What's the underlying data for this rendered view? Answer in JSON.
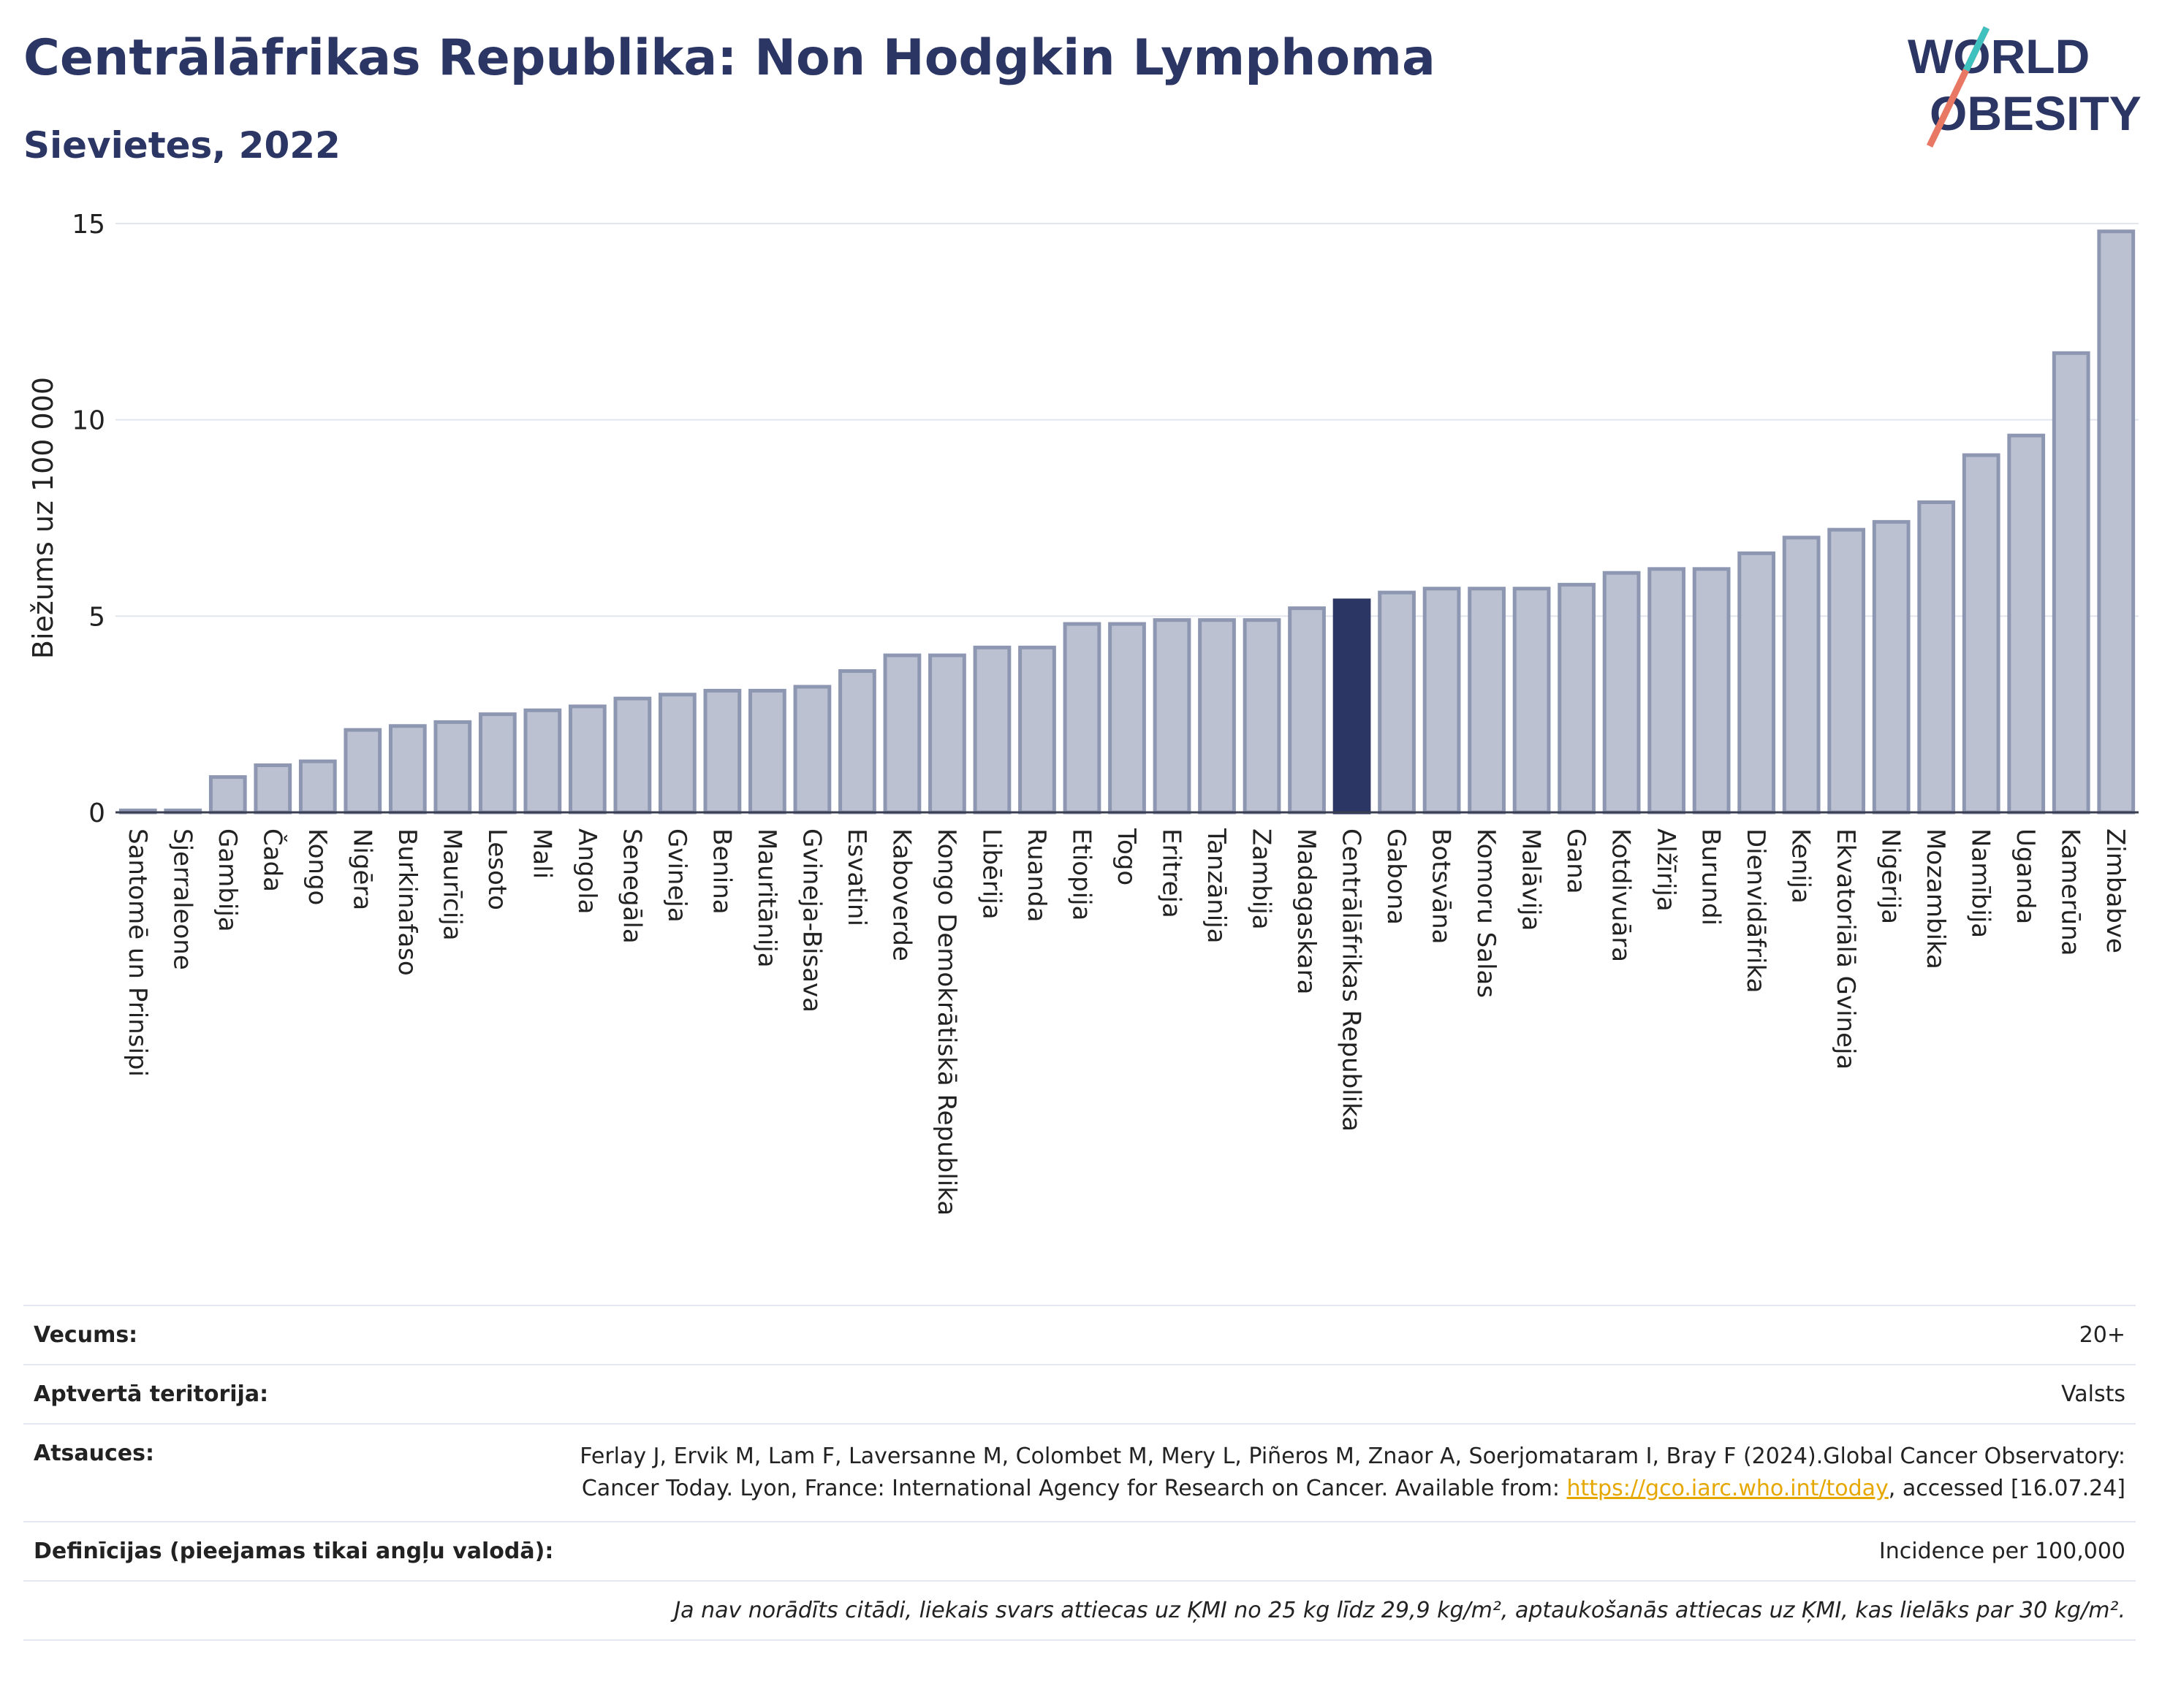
{
  "title": "Centrālāfrikas Republika: Non Hodgkin Lymphoma",
  "subtitle": "Sievietes, 2022",
  "logo": {
    "line1": "WORLD",
    "line2": "OBESITY"
  },
  "chart_data": {
    "type": "bar",
    "ylabel": "Biežums uz 100 000",
    "ylim": [
      0,
      15
    ],
    "yticks": [
      0,
      5,
      10,
      15
    ],
    "grid": true,
    "highlight": "Centrālāfrikas Republika",
    "colors": {
      "bar": "#bcc1d1",
      "bar_edge": "#8e97b2",
      "highlight": "#2b3664"
    },
    "categories": [
      "Santomē un Prinsipi",
      "Sjerraleone",
      "Gambija",
      "Čada",
      "Kongo",
      "Nigēra",
      "Burkinafaso",
      "Maurīcija",
      "Lesoto",
      "Mali",
      "Angola",
      "Senegāla",
      "Gvineja",
      "Benina",
      "Mauritānija",
      "Gvineja-Bisava",
      "Esvatini",
      "Kaboverde",
      "Kongo Demokrātiskā Republika",
      "Libērija",
      "Ruanda",
      "Etiopija",
      "Togo",
      "Eritreja",
      "Tanzānija",
      "Zambija",
      "Madagaskara",
      "Centrālāfrikas Republika",
      "Gabona",
      "Botsvāna",
      "Komoru Salas",
      "Malāvija",
      "Gana",
      "Kotdivuāra",
      "Alžīrija",
      "Burundi",
      "Dienvidāfrika",
      "Kenija",
      "Ekvatoriālā Gvineja",
      "Nigērija",
      "Mozambika",
      "Namībija",
      "Uganda",
      "Kamerūna",
      "Zimbabve"
    ],
    "values": [
      0.05,
      0.05,
      0.9,
      1.2,
      1.3,
      2.1,
      2.2,
      2.3,
      2.5,
      2.6,
      2.7,
      2.9,
      3.0,
      3.1,
      3.1,
      3.2,
      3.6,
      4.0,
      4.0,
      4.2,
      4.2,
      4.8,
      4.8,
      4.9,
      4.9,
      4.9,
      5.2,
      5.4,
      5.6,
      5.7,
      5.7,
      5.7,
      5.8,
      6.1,
      6.2,
      6.2,
      6.6,
      7.0,
      7.2,
      7.4,
      7.9,
      9.1,
      9.6,
      11.7,
      14.8
    ]
  },
  "info": {
    "age_label": "Vecums:",
    "age_value": "20+",
    "territory_label": "Aptvertā teritorija:",
    "territory_value": "Valsts",
    "refs_label": "Atsauces:",
    "refs_text_1": "Ferlay J, Ervik M, Lam F, Laversanne M, Colombet M, Mery L, Piñeros M, Znaor A, Soerjomataram I, Bray F (2024).Global Cancer Observatory: Cancer Today. Lyon, France: International Agency for Research on Cancer. Available from: ",
    "refs_link": "https://gco.iarc.who.int/today",
    "refs_text_2": ", accessed [16.07.24]",
    "definitions_label": "Definīcijas (pieejamas tikai angļu valodā):",
    "definitions_value": "Incidence per 100,000",
    "note": "Ja nav norādīts citādi, liekais svars attiecas uz ĶMI no 25 kg līdz 29,9 kg/m², aptaukošanās attiecas uz ĶMI, kas lielāks par 30 kg/m²."
  }
}
